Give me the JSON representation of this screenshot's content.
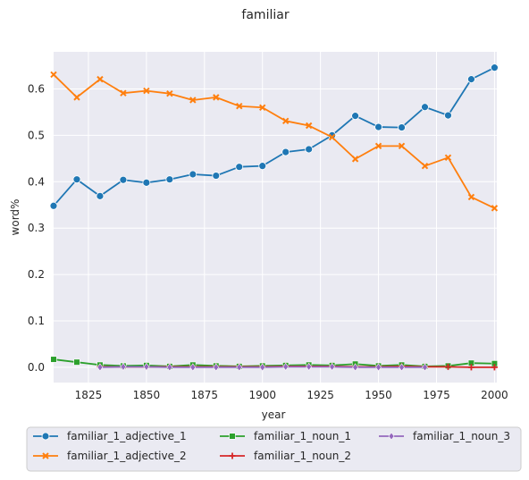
{
  "chart_data": {
    "type": "line",
    "title": "familiar",
    "xlabel": "year",
    "ylabel": "word%",
    "xlim": [
      1810,
      2001
    ],
    "ylim": [
      -0.033,
      0.68
    ],
    "xticks": [
      1825,
      1850,
      1875,
      1900,
      1925,
      1950,
      1975,
      2000
    ],
    "xtick_labels": [
      "1825",
      "1850",
      "1875",
      "1900",
      "1925",
      "1950",
      "1975",
      "2000"
    ],
    "yticks": [
      0.0,
      0.1,
      0.2,
      0.3,
      0.4,
      0.5,
      0.6
    ],
    "ytick_labels": [
      "0.0",
      "0.1",
      "0.2",
      "0.3",
      "0.4",
      "0.5",
      "0.6"
    ],
    "grid": true,
    "legend_position": "bottom",
    "series": [
      {
        "name": "familiar_1_adjective_1",
        "color": "#1f77b4",
        "marker": "circle",
        "x": [
          1810,
          1820,
          1830,
          1840,
          1850,
          1860,
          1870,
          1880,
          1890,
          1900,
          1910,
          1920,
          1930,
          1940,
          1950,
          1960,
          1970,
          1980,
          1990,
          2000
        ],
        "y": [
          0.348,
          0.405,
          0.369,
          0.404,
          0.398,
          0.405,
          0.416,
          0.413,
          0.432,
          0.434,
          0.464,
          0.47,
          0.5,
          0.542,
          0.518,
          0.517,
          0.561,
          0.543,
          0.621,
          0.646
        ]
      },
      {
        "name": "familiar_1_adjective_2",
        "color": "#ff7f0e",
        "marker": "x",
        "x": [
          1810,
          1820,
          1830,
          1840,
          1850,
          1860,
          1870,
          1880,
          1890,
          1900,
          1910,
          1920,
          1930,
          1940,
          1950,
          1960,
          1970,
          1980,
          1990,
          2000
        ],
        "y": [
          0.631,
          0.582,
          0.621,
          0.591,
          0.596,
          0.59,
          0.576,
          0.582,
          0.563,
          0.56,
          0.531,
          0.521,
          0.496,
          0.449,
          0.477,
          0.477,
          0.434,
          0.452,
          0.367,
          0.343
        ]
      },
      {
        "name": "familiar_1_noun_1",
        "color": "#2ca02c",
        "marker": "square",
        "x": [
          1810,
          1820,
          1830,
          1840,
          1850,
          1860,
          1870,
          1880,
          1890,
          1900,
          1910,
          1920,
          1930,
          1940,
          1950,
          1960,
          1970,
          1980,
          1990,
          2000
        ],
        "y": [
          0.017,
          0.011,
          0.005,
          0.003,
          0.004,
          0.002,
          0.005,
          0.003,
          0.002,
          0.003,
          0.004,
          0.005,
          0.004,
          0.007,
          0.003,
          0.005,
          0.002,
          0.003,
          0.009,
          0.008
        ]
      },
      {
        "name": "familiar_1_noun_2",
        "color": "#d62728",
        "marker": "plus",
        "x": [
          1830,
          1840,
          1850,
          1860,
          1870,
          1880,
          1890,
          1900,
          1910,
          1920,
          1930,
          1940,
          1950,
          1960,
          1970,
          1980,
          1990,
          2000
        ],
        "y": [
          0.001,
          0.001,
          0.001,
          0.001,
          0.001,
          0.001,
          0.001,
          0.001,
          0.002,
          0.002,
          0.002,
          0.001,
          0.001,
          0.002,
          0.001,
          0.001,
          0.0,
          0.0
        ]
      },
      {
        "name": "familiar_1_noun_3",
        "color": "#9467bd",
        "marker": "diamond",
        "x": [
          1830,
          1840,
          1850,
          1860,
          1870,
          1880,
          1890,
          1900,
          1910,
          1920,
          1930,
          1940,
          1950,
          1960,
          1970
        ],
        "y": [
          0.0,
          0.001,
          0.001,
          0.0,
          0.0,
          0.0,
          0.0,
          0.0,
          0.001,
          0.001,
          0.001,
          0.0,
          0.0,
          0.0,
          0.0
        ]
      }
    ]
  }
}
